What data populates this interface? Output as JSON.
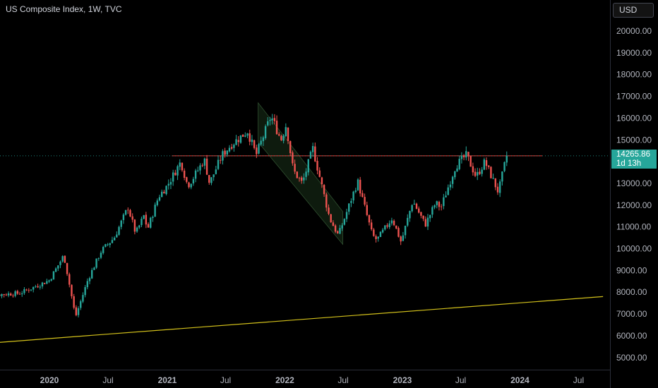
{
  "header": {
    "title": "US Composite Index, 1W, TVC"
  },
  "currency_button": {
    "label": "USD"
  },
  "price_tag": {
    "price": "14265.86",
    "countdown": "1d 13h"
  },
  "colors": {
    "up": "#26a69a",
    "down": "#ef5350",
    "axis_text": "#b2b5be",
    "price_line": "#e53935",
    "trend_line": "#d4c21b",
    "channel": "#1e3c1e"
  },
  "chart_data": {
    "type": "candlestick",
    "symbol": "US Composite Index",
    "interval": "1W",
    "source": "TVC",
    "currency": "USD",
    "last_price": 14265.86,
    "ylim": [
      4500,
      21000
    ],
    "y_ticks": [
      5000,
      6000,
      7000,
      8000,
      9000,
      10000,
      11000,
      12000,
      13000,
      14000,
      15000,
      16000,
      17000,
      18000,
      19000,
      20000
    ],
    "y_tick_labels": [
      "5000.00",
      "6000.00",
      "7000.00",
      "8000.00",
      "9000.00",
      "10000.00",
      "11000.00",
      "12000.00",
      "13000.00",
      "14000.00",
      "15000.00",
      "16000.00",
      "17000.00",
      "18000.00",
      "19000.00",
      "20000.00"
    ],
    "x_ticks": [
      "2020",
      "Jul",
      "2021",
      "Jul",
      "2022",
      "Jul",
      "2023",
      "Jul",
      "2024",
      "Jul"
    ],
    "x_tick_dates": [
      "2020-01-01",
      "2020-07-01",
      "2021-01-01",
      "2021-07-01",
      "2022-01-01",
      "2022-07-01",
      "2023-01-01",
      "2023-07-01",
      "2024-01-01",
      "2024-07-01"
    ],
    "x_tick_bold": [
      true,
      false,
      true,
      false,
      true,
      false,
      true,
      false,
      true,
      false
    ],
    "grid": false,
    "horizontal_line": {
      "price": 14265.86,
      "from": "2021-01-15",
      "to": "2023-12-31"
    },
    "trend_line": {
      "start": {
        "date": "2019-06-01",
        "price": 5630
      },
      "end": {
        "date": "2024-09-15",
        "price": 7800
      }
    },
    "channel": {
      "upper_start": {
        "date": "2021-10-10",
        "price": 16700
      },
      "upper_end": {
        "date": "2022-06-30",
        "price": 11700
      },
      "lower_start": {
        "date": "2021-10-10",
        "price": 14900
      },
      "lower_end": {
        "date": "2022-06-30",
        "price": 10200
      }
    },
    "anchors": [
      [
        "2019-06-01",
        7850
      ],
      [
        "2019-10-01",
        7950
      ],
      [
        "2020-01-01",
        8550
      ],
      [
        "2020-02-15",
        9700
      ],
      [
        "2020-03-22",
        6860
      ],
      [
        "2020-04-30",
        8600
      ],
      [
        "2020-06-10",
        9900
      ],
      [
        "2020-07-20",
        10500
      ],
      [
        "2020-09-01",
        11900
      ],
      [
        "2020-09-25",
        10700
      ],
      [
        "2020-10-20",
        11500
      ],
      [
        "2020-11-01",
        10900
      ],
      [
        "2020-12-05",
        12400
      ],
      [
        "2021-01-01",
        12900
      ],
      [
        "2021-02-12",
        14000
      ],
      [
        "2021-03-05",
        12900
      ],
      [
        "2021-03-20",
        13200
      ],
      [
        "2021-04-26",
        14100
      ],
      [
        "2021-05-12",
        13000
      ],
      [
        "2021-06-20",
        14300
      ],
      [
        "2021-07-20",
        14800
      ],
      [
        "2021-09-07",
        15400
      ],
      [
        "2021-10-04",
        14300
      ],
      [
        "2021-11-19",
        16100
      ],
      [
        "2021-12-20",
        15000
      ],
      [
        "2022-01-05",
        15700
      ],
      [
        "2022-01-27",
        13600
      ],
      [
        "2022-02-24",
        13000
      ],
      [
        "2022-03-29",
        14600
      ],
      [
        "2022-05-20",
        11400
      ],
      [
        "2022-06-16",
        10600
      ],
      [
        "2022-08-15",
        13100
      ],
      [
        "2022-09-30",
        10600
      ],
      [
        "2022-10-14",
        10400
      ],
      [
        "2022-11-30",
        11400
      ],
      [
        "2022-12-28",
        10300
      ],
      [
        "2023-02-02",
        12200
      ],
      [
        "2023-03-13",
        11100
      ],
      [
        "2023-04-14",
        12100
      ],
      [
        "2023-05-01",
        11900
      ],
      [
        "2023-06-15",
        13800
      ],
      [
        "2023-07-19",
        14300
      ],
      [
        "2023-08-18",
        13300
      ],
      [
        "2023-09-14",
        14000
      ],
      [
        "2023-10-26",
        12600
      ],
      [
        "2023-11-21",
        14266
      ]
    ]
  }
}
